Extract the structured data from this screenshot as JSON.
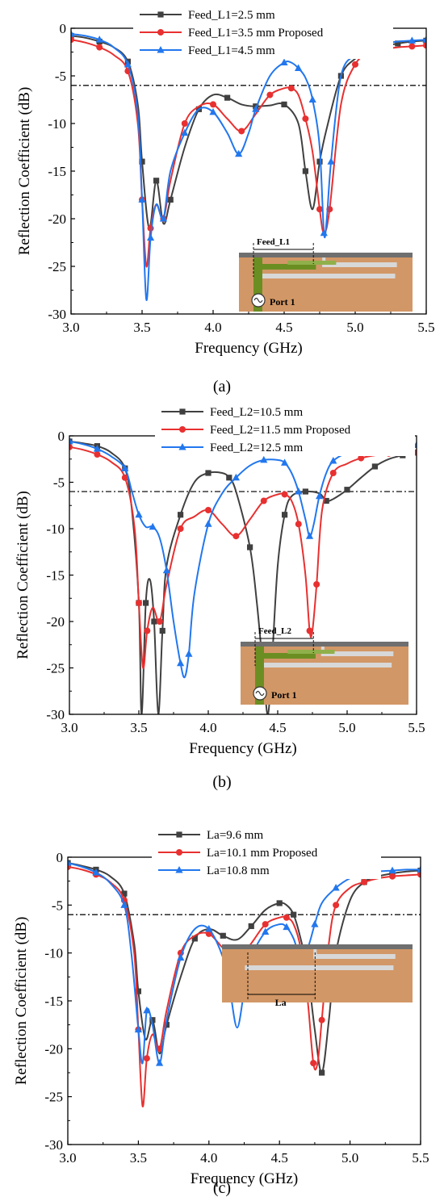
{
  "chart_data": [
    {
      "type": "line",
      "caption": "(a)",
      "xlabel": "Frequency (GHz)",
      "ylabel": "Reflection Coefficient (dB)",
      "xlim": [
        3.0,
        5.5
      ],
      "ylim": [
        -30,
        0
      ],
      "xticks": [
        "3.0",
        "3.5",
        "4.0",
        "4.5",
        "5.0",
        "5.5"
      ],
      "yticks": [
        "0",
        "-5",
        "-10",
        "-15",
        "-20",
        "-25",
        "-30"
      ],
      "reference_line": -6,
      "legend_position": "top-center",
      "inset": {
        "dimension_label": "Feed_L1",
        "port_label": "Port 1",
        "show_feed": true,
        "dim_anchor": "left"
      },
      "series": [
        {
          "name": "Feed_L1=2.5 mm",
          "color": "#404040",
          "marker": "square",
          "x": [
            3.0,
            3.1,
            3.2,
            3.3,
            3.4,
            3.47,
            3.5,
            3.55,
            3.6,
            3.65,
            3.7,
            3.8,
            3.9,
            4.0,
            4.1,
            4.2,
            4.3,
            4.4,
            4.5,
            4.6,
            4.65,
            4.7,
            4.75,
            4.8,
            4.9,
            5.0,
            5.1,
            5.2,
            5.3,
            5.4,
            5.5
          ],
          "y": [
            -0.8,
            -1.0,
            -1.4,
            -2.0,
            -3.5,
            -8.0,
            -14.0,
            -21.0,
            -16.0,
            -20.5,
            -18.0,
            -12.5,
            -8.5,
            -7.0,
            -7.3,
            -8.0,
            -8.2,
            -8.1,
            -8.0,
            -10.0,
            -15.0,
            -19.0,
            -14.0,
            -10.5,
            -5.0,
            -3.2,
            -2.4,
            -1.9,
            -1.6,
            -1.4,
            -1.3
          ]
        },
        {
          "name": "Feed_L1=3.5 mm Proposed",
          "color": "#e83030",
          "marker": "circle",
          "x": [
            3.0,
            3.1,
            3.2,
            3.3,
            3.4,
            3.47,
            3.5,
            3.53,
            3.56,
            3.6,
            3.65,
            3.7,
            3.8,
            3.9,
            4.0,
            4.1,
            4.2,
            4.3,
            4.4,
            4.5,
            4.55,
            4.6,
            4.65,
            4.7,
            4.75,
            4.78,
            4.82,
            4.9,
            5.0,
            5.1,
            5.2,
            5.3,
            5.4,
            5.5
          ],
          "y": [
            -1.2,
            -1.5,
            -2.0,
            -2.8,
            -4.5,
            -10.0,
            -18.0,
            -25.0,
            -21.0,
            -18.5,
            -20.0,
            -16.0,
            -10.0,
            -8.2,
            -8.0,
            -9.5,
            -10.8,
            -9.0,
            -7.0,
            -6.3,
            -6.3,
            -7.0,
            -9.5,
            -13.0,
            -19.0,
            -21.5,
            -19.0,
            -8.0,
            -3.8,
            -2.6,
            -2.2,
            -2.0,
            -1.9,
            -1.8
          ]
        },
        {
          "name": "Feed_L1=4.5 mm",
          "color": "#2277ee",
          "marker": "triangle",
          "x": [
            3.0,
            3.1,
            3.2,
            3.3,
            3.4,
            3.47,
            3.5,
            3.53,
            3.56,
            3.6,
            3.65,
            3.7,
            3.8,
            3.9,
            4.0,
            4.1,
            4.18,
            4.25,
            4.3,
            4.4,
            4.5,
            4.55,
            4.6,
            4.65,
            4.7,
            4.75,
            4.78,
            4.8,
            4.83,
            4.9,
            5.0,
            5.1,
            5.2,
            5.3,
            5.4,
            5.5
          ],
          "y": [
            -0.6,
            -0.8,
            -1.2,
            -2.0,
            -3.8,
            -9.0,
            -18.0,
            -28.5,
            -22.0,
            -18.5,
            -20.0,
            -15.0,
            -11.0,
            -8.5,
            -8.8,
            -11.0,
            -13.2,
            -11.0,
            -8.5,
            -5.0,
            -3.6,
            -3.6,
            -4.2,
            -5.2,
            -7.5,
            -12.5,
            -21.5,
            -20.0,
            -14.0,
            -5.0,
            -2.8,
            -2.0,
            -1.6,
            -1.4,
            -1.3,
            -1.2
          ]
        }
      ]
    },
    {
      "type": "line",
      "caption": "(b)",
      "xlabel": "Frequency (GHz)",
      "ylabel": "Reflection Coefficient (dB)",
      "xlim": [
        3.0,
        5.5
      ],
      "ylim": [
        -30,
        0
      ],
      "xticks": [
        "3.0",
        "3.5",
        "4.0",
        "4.5",
        "5.0",
        "5.5"
      ],
      "yticks": [
        "0",
        "-5",
        "-10",
        "-15",
        "-20",
        "-25",
        "-30"
      ],
      "reference_line": -6,
      "legend_position": "top-center",
      "inset": {
        "dimension_label": "Feed_L2",
        "port_label": "Port 1",
        "show_feed": true,
        "dim_anchor": "left"
      },
      "series": [
        {
          "name": "Feed_L2=10.5 mm",
          "color": "#404040",
          "marker": "square",
          "x": [
            3.0,
            3.1,
            3.2,
            3.3,
            3.4,
            3.45,
            3.5,
            3.52,
            3.55,
            3.58,
            3.61,
            3.64,
            3.67,
            3.7,
            3.8,
            3.9,
            4.0,
            4.1,
            4.15,
            4.2,
            4.3,
            4.35,
            4.4,
            4.43,
            4.46,
            4.5,
            4.55,
            4.6,
            4.7,
            4.8,
            4.85,
            4.9,
            5.0,
            5.1,
            5.2,
            5.3,
            5.4,
            5.5
          ],
          "y": [
            -0.6,
            -0.8,
            -1.1,
            -1.8,
            -3.5,
            -8.0,
            -18.0,
            -30.0,
            -18.0,
            -15.5,
            -20.0,
            -30.0,
            -21.0,
            -14.0,
            -8.5,
            -5.0,
            -4.0,
            -4.0,
            -4.5,
            -6.0,
            -12.0,
            -18.0,
            -26.0,
            -30.0,
            -24.0,
            -14.0,
            -8.5,
            -6.5,
            -6.0,
            -6.2,
            -7.0,
            -6.8,
            -5.8,
            -4.5,
            -3.3,
            -2.5,
            -2.1,
            -1.8
          ]
        },
        {
          "name": "Feed_L2=11.5 mm Proposed",
          "color": "#e83030",
          "marker": "circle",
          "x": [
            3.0,
            3.1,
            3.2,
            3.3,
            3.4,
            3.47,
            3.5,
            3.53,
            3.56,
            3.6,
            3.65,
            3.7,
            3.8,
            3.9,
            4.0,
            4.1,
            4.2,
            4.3,
            4.4,
            4.5,
            4.55,
            4.6,
            4.65,
            4.7,
            4.73,
            4.75,
            4.78,
            4.82,
            4.9,
            5.0,
            5.1,
            5.2,
            5.3,
            5.4,
            5.5
          ],
          "y": [
            -1.2,
            -1.5,
            -2.0,
            -2.8,
            -4.5,
            -10.0,
            -18.0,
            -25.0,
            -21.0,
            -18.5,
            -20.0,
            -16.0,
            -10.0,
            -8.7,
            -8.0,
            -9.5,
            -10.8,
            -9.0,
            -7.0,
            -6.3,
            -6.3,
            -7.0,
            -9.5,
            -15.0,
            -21.0,
            -21.0,
            -16.0,
            -8.0,
            -4.0,
            -3.0,
            -2.4,
            -2.1,
            -1.9,
            -1.8,
            -1.8
          ]
        },
        {
          "name": "Feed_L2=12.5 mm",
          "color": "#2277ee",
          "marker": "triangle",
          "x": [
            3.0,
            3.1,
            3.2,
            3.3,
            3.4,
            3.45,
            3.5,
            3.55,
            3.6,
            3.65,
            3.7,
            3.75,
            3.8,
            3.83,
            3.86,
            3.9,
            4.0,
            4.1,
            4.2,
            4.3,
            4.4,
            4.5,
            4.55,
            4.6,
            4.65,
            4.7,
            4.73,
            4.76,
            4.8,
            4.85,
            4.9,
            5.0,
            5.1,
            5.2,
            5.3,
            5.4,
            5.5
          ],
          "y": [
            -0.6,
            -0.9,
            -1.4,
            -2.2,
            -3.5,
            -6.0,
            -8.5,
            -9.8,
            -9.8,
            -11.0,
            -14.5,
            -20.0,
            -24.5,
            -26.0,
            -23.5,
            -17.0,
            -9.5,
            -6.2,
            -4.5,
            -3.2,
            -2.6,
            -2.6,
            -2.9,
            -4.0,
            -6.0,
            -9.0,
            -10.8,
            -9.5,
            -6.5,
            -4.0,
            -2.7,
            -1.8,
            -1.4,
            -1.2,
            -1.1,
            -1.0,
            -1.0
          ]
        }
      ]
    },
    {
      "type": "line",
      "caption": "(c)",
      "xlabel": "Frequency (GHz)",
      "ylabel": "Reflection Coefficient (dB)",
      "xlim": [
        3.0,
        5.5
      ],
      "ylim": [
        -30,
        0
      ],
      "xticks": [
        "3.0",
        "3.5",
        "4.0",
        "4.5",
        "5.0",
        "5.5"
      ],
      "yticks": [
        "0",
        "-5",
        "-10",
        "-15",
        "-20",
        "-25",
        "-30"
      ],
      "reference_line": -6,
      "legend_position": "top-center",
      "inset": {
        "dimension_label": "La",
        "port_label": "",
        "show_feed": false,
        "dim_anchor": "bottom"
      },
      "series": [
        {
          "name": "La=9.6 mm",
          "color": "#404040",
          "marker": "square",
          "x": [
            3.0,
            3.1,
            3.2,
            3.3,
            3.4,
            3.47,
            3.5,
            3.55,
            3.6,
            3.65,
            3.7,
            3.8,
            3.9,
            4.0,
            4.1,
            4.2,
            4.3,
            4.4,
            4.5,
            4.55,
            4.6,
            4.65,
            4.7,
            4.75,
            4.8,
            4.85,
            4.9,
            5.0,
            5.1,
            5.2,
            5.3,
            5.4,
            5.5
          ],
          "y": [
            -0.6,
            -0.9,
            -1.3,
            -2.0,
            -3.8,
            -9.0,
            -14.0,
            -19.0,
            -17.0,
            -20.5,
            -17.5,
            -12.5,
            -8.5,
            -7.5,
            -8.2,
            -8.6,
            -7.2,
            -5.5,
            -4.8,
            -5.0,
            -6.0,
            -8.5,
            -12.0,
            -18.0,
            -22.5,
            -17.0,
            -10.0,
            -4.5,
            -2.6,
            -2.0,
            -1.7,
            -1.5,
            -1.4
          ]
        },
        {
          "name": "La=10.1 mm Proposed",
          "color": "#e83030",
          "marker": "circle",
          "x": [
            3.0,
            3.1,
            3.2,
            3.3,
            3.4,
            3.47,
            3.5,
            3.53,
            3.56,
            3.6,
            3.65,
            3.7,
            3.8,
            3.9,
            4.0,
            4.1,
            4.2,
            4.3,
            4.4,
            4.5,
            4.55,
            4.6,
            4.65,
            4.7,
            4.74,
            4.77,
            4.8,
            4.85,
            4.9,
            5.0,
            5.1,
            5.2,
            5.3,
            5.4,
            5.5
          ],
          "y": [
            -1.0,
            -1.3,
            -1.8,
            -2.6,
            -4.5,
            -10.0,
            -18.0,
            -26.0,
            -21.0,
            -18.5,
            -20.0,
            -16.0,
            -10.0,
            -8.2,
            -8.0,
            -9.5,
            -10.8,
            -9.0,
            -7.0,
            -6.3,
            -6.3,
            -7.0,
            -9.5,
            -15.0,
            -21.5,
            -21.5,
            -17.0,
            -9.0,
            -5.0,
            -3.2,
            -2.6,
            -2.2,
            -2.0,
            -1.9,
            -1.8
          ]
        },
        {
          "name": "La=10.8 mm",
          "color": "#2277ee",
          "marker": "triangle",
          "x": [
            3.0,
            3.1,
            3.2,
            3.3,
            3.4,
            3.45,
            3.5,
            3.53,
            3.56,
            3.6,
            3.65,
            3.7,
            3.8,
            3.9,
            4.0,
            4.1,
            4.15,
            4.2,
            4.25,
            4.3,
            4.4,
            4.5,
            4.55,
            4.6,
            4.65,
            4.7,
            4.75,
            4.8,
            4.9,
            5.0,
            5.1,
            5.2,
            5.3,
            5.4,
            5.5
          ],
          "y": [
            -0.6,
            -1.0,
            -1.6,
            -2.7,
            -5.0,
            -10.0,
            -18.0,
            -21.5,
            -16.0,
            -17.5,
            -21.5,
            -17.0,
            -10.5,
            -7.5,
            -7.5,
            -10.5,
            -14.0,
            -17.8,
            -14.0,
            -10.5,
            -7.8,
            -7.0,
            -7.3,
            -8.5,
            -10.5,
            -9.5,
            -7.0,
            -4.8,
            -3.2,
            -2.2,
            -1.8,
            -1.5,
            -1.4,
            -1.3,
            -1.3
          ]
        }
      ]
    }
  ]
}
